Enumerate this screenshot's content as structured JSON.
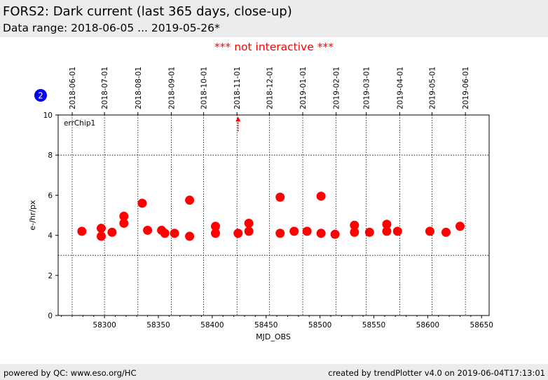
{
  "header": {
    "title": "FORS2: Dark current (last 365 days, close-up)",
    "subtitle": "Data range: 2018-06-05 ... 2019-05-26*"
  },
  "notice": {
    "text": "*** not interactive ***",
    "color": "#ff0000"
  },
  "badge": {
    "text": "2",
    "color": "#0000ee"
  },
  "footer": {
    "left": "powered by QC: www.eso.org/HC",
    "right": "created by trendPlotter v4.0 on 2019-06-04T17:13:01"
  },
  "chart_data": {
    "type": "scatter",
    "legend_label": "errChip1",
    "xlabel": "MJD_OBS",
    "ylabel": "e-/hr/px",
    "xlim": [
      58257,
      58657
    ],
    "ylim": [
      0,
      10
    ],
    "x_ticks": [
      58300,
      58350,
      58400,
      58450,
      58500,
      58550,
      58600,
      58650
    ],
    "y_ticks": [
      0,
      2,
      4,
      6,
      8,
      10
    ],
    "top_axis_dates": [
      {
        "label": "2018-06-01",
        "mjd": 58270
      },
      {
        "label": "2018-07-01",
        "mjd": 58300
      },
      {
        "label": "2018-08-01",
        "mjd": 58331
      },
      {
        "label": "2018-09-01",
        "mjd": 58362
      },
      {
        "label": "2018-10-01",
        "mjd": 58392
      },
      {
        "label": "2018-11-01",
        "mjd": 58423
      },
      {
        "label": "2018-12-01",
        "mjd": 58453
      },
      {
        "label": "2019-01-01",
        "mjd": 58484
      },
      {
        "label": "2019-02-01",
        "mjd": 58515
      },
      {
        "label": "2019-03-01",
        "mjd": 58543
      },
      {
        "label": "2019-04-01",
        "mjd": 58574
      },
      {
        "label": "2019-05-01",
        "mjd": 58604
      },
      {
        "label": "2019-06-01",
        "mjd": 58635
      }
    ],
    "reference_lines": [
      8,
      3
    ],
    "outlier_arrow": {
      "x": 58424,
      "y": 9.85
    },
    "point_color": "#ff0000",
    "points": [
      {
        "x": 58279,
        "y": 4.2
      },
      {
        "x": 58297,
        "y": 4.35
      },
      {
        "x": 58297,
        "y": 3.95
      },
      {
        "x": 58307,
        "y": 4.15
      },
      {
        "x": 58318,
        "y": 4.95
      },
      {
        "x": 58318,
        "y": 4.6
      },
      {
        "x": 58335,
        "y": 5.6
      },
      {
        "x": 58340,
        "y": 4.25
      },
      {
        "x": 58353,
        "y": 4.25
      },
      {
        "x": 58356,
        "y": 4.1
      },
      {
        "x": 58365,
        "y": 4.1
      },
      {
        "x": 58379,
        "y": 5.75
      },
      {
        "x": 58379,
        "y": 3.95
      },
      {
        "x": 58403,
        "y": 4.45
      },
      {
        "x": 58403,
        "y": 4.1
      },
      {
        "x": 58424,
        "y": 4.1
      },
      {
        "x": 58434,
        "y": 4.6
      },
      {
        "x": 58434,
        "y": 4.2
      },
      {
        "x": 58463,
        "y": 5.9
      },
      {
        "x": 58463,
        "y": 4.1
      },
      {
        "x": 58476,
        "y": 4.2
      },
      {
        "x": 58488,
        "y": 4.2
      },
      {
        "x": 58501,
        "y": 5.95
      },
      {
        "x": 58501,
        "y": 4.1
      },
      {
        "x": 58514,
        "y": 4.05
      },
      {
        "x": 58532,
        "y": 4.5
      },
      {
        "x": 58532,
        "y": 4.15
      },
      {
        "x": 58546,
        "y": 4.15
      },
      {
        "x": 58562,
        "y": 4.55
      },
      {
        "x": 58562,
        "y": 4.2
      },
      {
        "x": 58572,
        "y": 4.2
      },
      {
        "x": 58602,
        "y": 4.2
      },
      {
        "x": 58617,
        "y": 4.15
      },
      {
        "x": 58630,
        "y": 4.45
      }
    ]
  }
}
